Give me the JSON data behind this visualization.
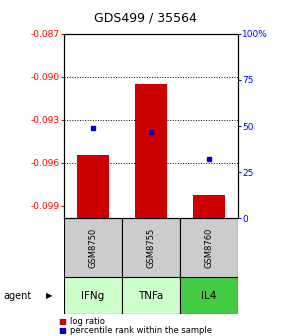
{
  "title": "GDS499 / 35564",
  "samples": [
    "GSM8750",
    "GSM8755",
    "GSM8760"
  ],
  "agents": [
    "IFNg",
    "TNFa",
    "IL4"
  ],
  "log_ratios": [
    -0.0955,
    -0.0905,
    -0.0983
  ],
  "percentile_ranks": [
    49,
    47,
    32
  ],
  "ylim_left": [
    -0.0999,
    -0.087
  ],
  "ylim_right": [
    0,
    100
  ],
  "yticks_left": [
    -0.099,
    -0.096,
    -0.093,
    -0.09,
    -0.087
  ],
  "yticks_right": [
    0,
    25,
    50,
    75,
    100
  ],
  "bar_color": "#cc0000",
  "dot_color": "#0000cc",
  "bar_width": 0.55,
  "agent_colors": [
    "#ccffcc",
    "#ccffcc",
    "#44cc44"
  ],
  "gsm_bg": "#cccccc",
  "agent_label": "agent"
}
